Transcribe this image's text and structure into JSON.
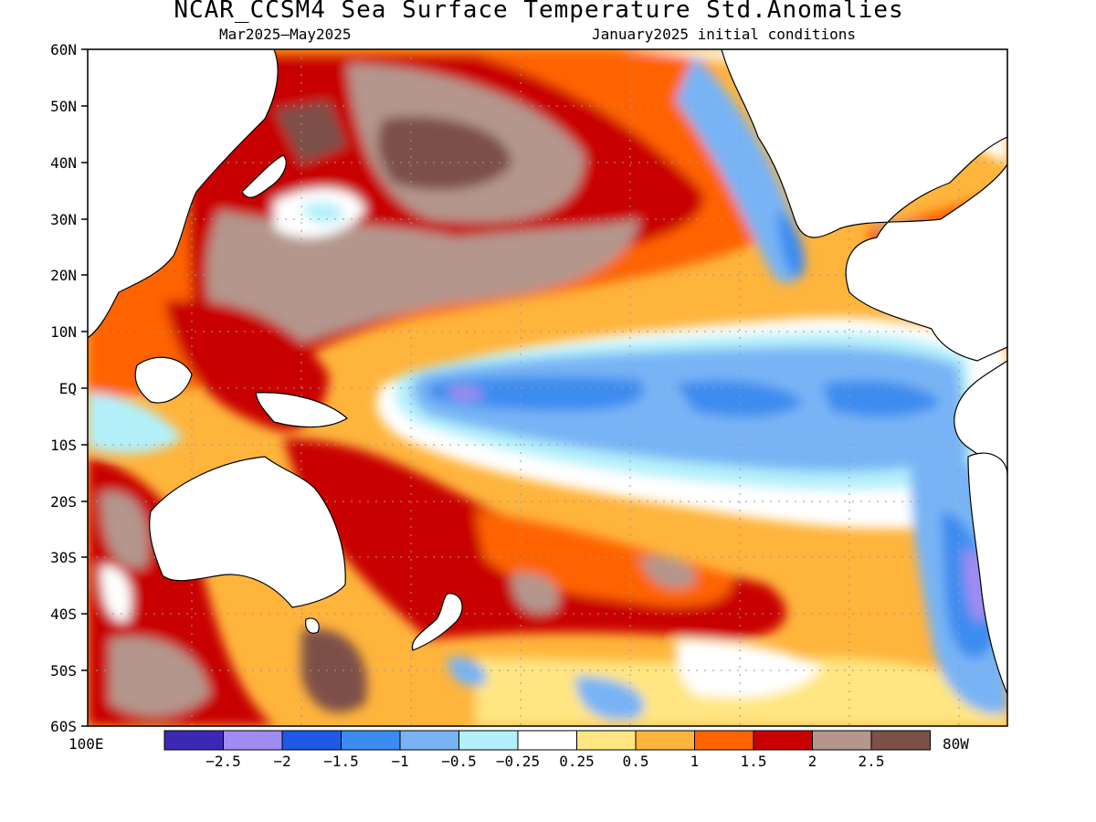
{
  "title": "NCAR_CCSM4 Sea Surface Temperature Std.Anomalies",
  "subtitle_left": "Mar2025–May2025",
  "subtitle_right": "January2025 initial conditions",
  "map": {
    "lat_labels": [
      "60N",
      "50N",
      "40N",
      "30N",
      "20N",
      "10N",
      "EQ",
      "10S",
      "20S",
      "30S",
      "40S",
      "50S",
      "60S"
    ],
    "lon_left": "100E",
    "lon_right": "80W"
  },
  "colorbar": {
    "colors": [
      "#3c28b4",
      "#a08cf0",
      "#1e5ae6",
      "#3c8cf0",
      "#78b4f5",
      "#b4f0fa",
      "#ffffff",
      "#ffe682",
      "#ffb43c",
      "#ff6400",
      "#c80000",
      "#b4968c",
      "#7d5048"
    ],
    "ticks": [
      "−2.5",
      "−2",
      "−1.5",
      "−1",
      "−0.5",
      "−0.25",
      "0.25",
      "0.5",
      "1",
      "1.5",
      "2",
      "2.5"
    ]
  }
}
